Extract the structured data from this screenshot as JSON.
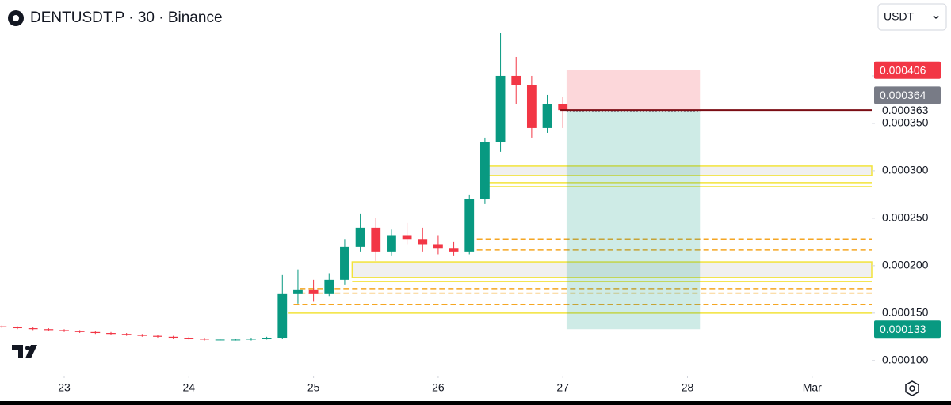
{
  "chart_data": {
    "type": "candlestick",
    "title": "DENTUSDT.P · 30 · Binance",
    "currency": "USDT",
    "up_color": "#089981",
    "down_color": "#f23645",
    "x": [
      22.5,
      22.625,
      22.75,
      22.875,
      23,
      23.125,
      23.25,
      23.375,
      23.5,
      23.625,
      23.75,
      23.875,
      24,
      24.125,
      24.25,
      24.375,
      24.5,
      24.625,
      24.75,
      24.875,
      25,
      25.125,
      25.25,
      25.375,
      25.5,
      25.625,
      25.75,
      25.875,
      26,
      26.125,
      26.25,
      26.375,
      26.5,
      26.625,
      26.75,
      26.875,
      27
    ],
    "open": [
      0.000136,
      0.000135,
      0.000134,
      0.000133,
      0.000132,
      0.000131,
      0.00013,
      0.000129,
      0.000128,
      0.000127,
      0.000126,
      0.000125,
      0.000124,
      0.000123,
      0.000122,
      0.000122,
      0.000122,
      0.000123,
      0.000124,
      0.00017,
      0.000175,
      0.00017,
      0.000185,
      0.00022,
      0.00024,
      0.000215,
      0.000232,
      0.000228,
      0.000222,
      0.000218,
      0.000215,
      0.00027,
      0.00033,
      0.0004,
      0.00039,
      0.000345,
      0.00037
    ],
    "high": [
      0.000137,
      0.000136,
      0.000135,
      0.000134,
      0.000133,
      0.000132,
      0.000131,
      0.00013,
      0.000129,
      0.000128,
      0.000127,
      0.000126,
      0.000125,
      0.000124,
      0.000123,
      0.000123,
      0.000124,
      0.000125,
      0.00019,
      0.000196,
      0.000185,
      0.000192,
      0.000228,
      0.000255,
      0.00025,
      0.000238,
      0.000245,
      0.00024,
      0.000232,
      0.000225,
      0.000275,
      0.000335,
      0.000445,
      0.00042,
      0.0004,
      0.00038,
      0.000378
    ],
    "low": [
      0.000134,
      0.000133,
      0.000132,
      0.000131,
      0.00013,
      0.000129,
      0.000128,
      0.000127,
      0.000126,
      0.000125,
      0.000124,
      0.000123,
      0.000122,
      0.000121,
      0.000121,
      0.000121,
      0.000121,
      0.000122,
      0.000123,
      0.00016,
      0.000162,
      0.000168,
      0.00018,
      0.000215,
      0.000205,
      0.00021,
      0.000222,
      0.000215,
      0.000212,
      0.00021,
      0.000212,
      0.000265,
      0.00032,
      0.00037,
      0.000335,
      0.00034,
      0.000345
    ],
    "close": [
      0.000135,
      0.000134,
      0.000133,
      0.000132,
      0.000131,
      0.00013,
      0.000129,
      0.000128,
      0.000127,
      0.000126,
      0.000125,
      0.000124,
      0.000123,
      0.000122,
      0.000122,
      0.000122,
      0.000123,
      0.000124,
      0.00017,
      0.000175,
      0.00017,
      0.000185,
      0.00022,
      0.00024,
      0.000215,
      0.000232,
      0.000228,
      0.000222,
      0.000218,
      0.000215,
      0.00027,
      0.00033,
      0.0004,
      0.00039,
      0.000345,
      0.00037,
      0.000364
    ],
    "xlim": [
      22.485,
      29.478
    ],
    "ylim": [
      8.4e-05,
      0.00048
    ],
    "xticks": [
      23,
      24,
      25,
      26,
      27,
      28,
      {
        "value": 29,
        "label": "Mar"
      }
    ],
    "yticks": [
      {
        "value": 0.0001,
        "label": "0.000100"
      },
      {
        "value": 0.00015,
        "label": "0.000150"
      },
      {
        "value": 0.0002,
        "label": "0.000200"
      },
      {
        "value": 0.00025,
        "label": "0.000250"
      },
      {
        "value": 0.0003,
        "label": "0.000300"
      },
      {
        "value": 0.00035,
        "label": "0.000350"
      },
      {
        "value": 0.0004,
        "label": "0.000400"
      }
    ],
    "zones": [
      {
        "top": 0.000305,
        "bottom": 0.000295,
        "start": 26.38
      },
      {
        "top": 0.000204,
        "bottom": 0.0001875,
        "start": 25.31
      }
    ],
    "levels": [
      {
        "value": 0.0002875,
        "start": 26.38,
        "color": "#f2e33a",
        "dashed": false
      },
      {
        "value": 0.0002833,
        "start": 26.38,
        "color": "#f2e33a",
        "dashed": false
      },
      {
        "value": 0.000228,
        "start": 26.24,
        "color": "#f5a623",
        "dashed": true
      },
      {
        "value": 0.0002167,
        "start": 26.24,
        "color": "#f5a623",
        "dashed": true
      },
      {
        "value": 0.0001833,
        "start": 25.31,
        "color": "#f2e33a",
        "dashed": false
      },
      {
        "value": 0.0001758,
        "start": 24.89,
        "color": "#f5a623",
        "dashed": true
      },
      {
        "value": 0.000171,
        "start": 24.89,
        "color": "#f5a623",
        "dashed": true
      },
      {
        "value": 0.0001592,
        "start": 24.84,
        "color": "#f5a623",
        "dashed": true
      },
      {
        "value": 0.00015,
        "start": 24.8,
        "color": "#f2e33a",
        "dashed": false
      }
    ],
    "position": {
      "start": 27.03,
      "end": 28.1,
      "entry": 0.000363,
      "stop": 0.000406,
      "target": 0.000133
    },
    "current_price": 0.000364,
    "current_price_line_start": 26.98,
    "price_labels": [
      {
        "value": 0.000406,
        "label": "0.000406",
        "color": "#f23645"
      },
      {
        "value": 0.000364,
        "label": "0.000364",
        "color": "#787b86"
      },
      {
        "value": 0.000363,
        "label": "0.000363"
      },
      {
        "value": 0.000133,
        "label": "0.000133",
        "color": "#089981"
      }
    ]
  }
}
